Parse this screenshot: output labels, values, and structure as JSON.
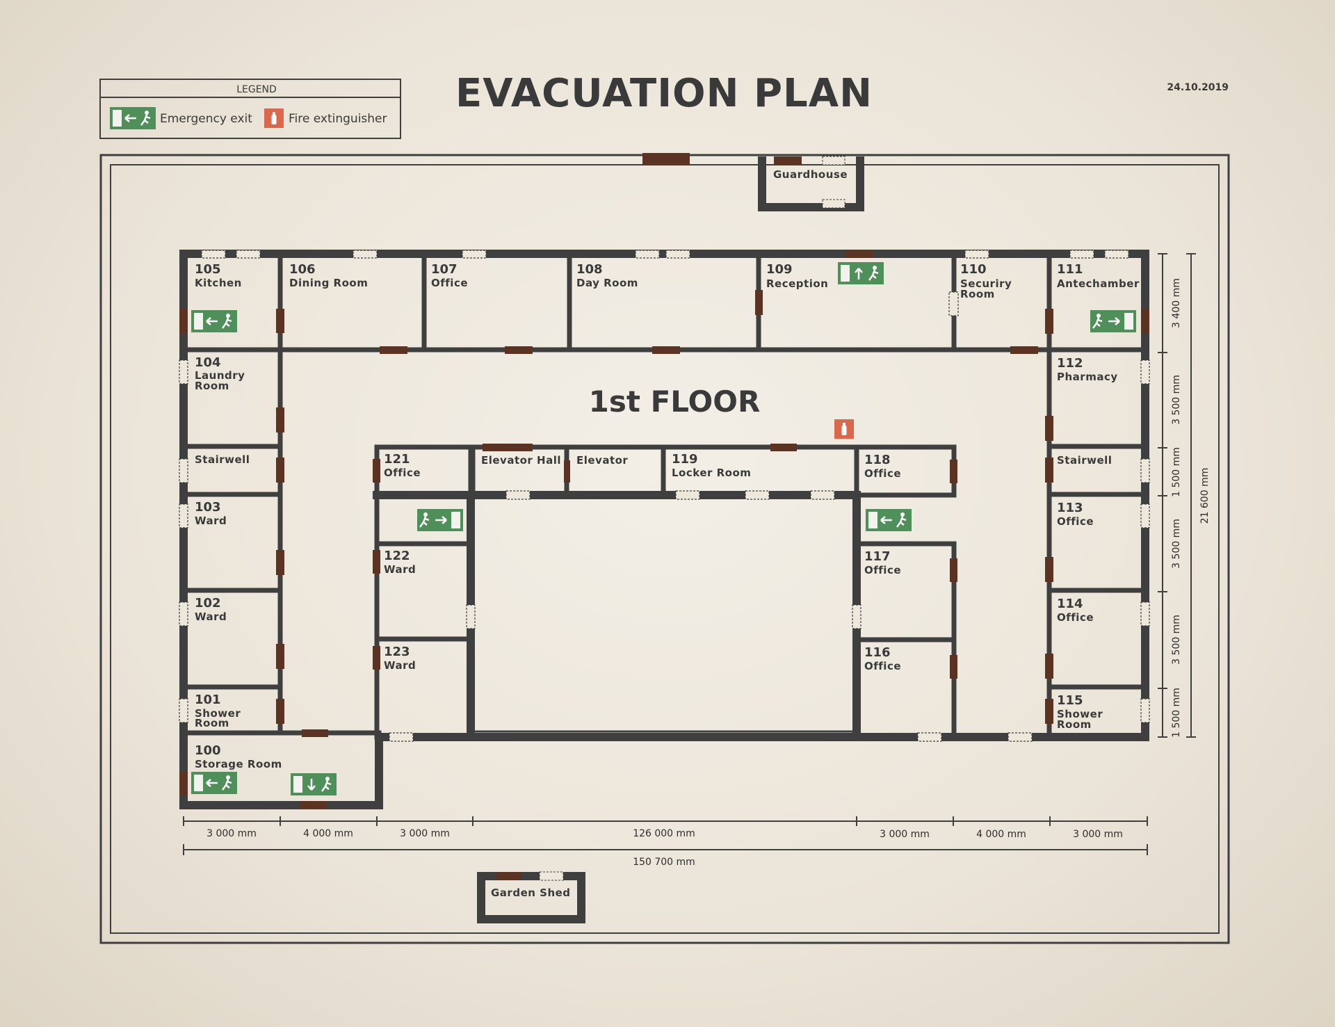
{
  "title": "EVACUATION PLAN",
  "date": "24.10.2019",
  "floor_label": "1st FLOOR",
  "legend": {
    "heading": "LEGEND",
    "items": [
      {
        "icon": "emergency-exit-icon",
        "label": "Emergency exit"
      },
      {
        "icon": "fire-extinguisher-icon",
        "label": "Fire extinguisher"
      }
    ]
  },
  "colors": {
    "wall": "#3f3f3f",
    "door": "#5a3322",
    "exit_sign": "#4f8f5a",
    "extinguisher": "#d9684d",
    "paper": "#ede7dc"
  },
  "outbuildings": {
    "guardhouse": "Guardhouse",
    "garden_shed": "Garden Shed"
  },
  "rooms": {
    "r105": {
      "number": "105",
      "name": "Kitchen"
    },
    "r106": {
      "number": "106",
      "name": "Dining Room"
    },
    "r107": {
      "number": "107",
      "name": "Office"
    },
    "r108": {
      "number": "108",
      "name": "Day Room"
    },
    "r109": {
      "number": "109",
      "name": "Reception"
    },
    "r110": {
      "number": "110",
      "name1": "Securiry",
      "name2": "Room"
    },
    "r111": {
      "number": "111",
      "name": "Antechamber"
    },
    "r104": {
      "number": "104",
      "name1": "Laundry",
      "name2": "Room"
    },
    "stair_w": {
      "name": "Stairwell"
    },
    "r103": {
      "number": "103",
      "name": "Ward"
    },
    "r102": {
      "number": "102",
      "name": "Ward"
    },
    "r101": {
      "number": "101",
      "name1": "Shower",
      "name2": "Room"
    },
    "r100": {
      "number": "100",
      "name": "Storage Room"
    },
    "r112": {
      "number": "112",
      "name": "Pharmacy"
    },
    "stair_e": {
      "name": "Stairwell"
    },
    "r113": {
      "number": "113",
      "name": "Office"
    },
    "r114": {
      "number": "114",
      "name": "Office"
    },
    "r115": {
      "number": "115",
      "name1": "Shower",
      "name2": "Room"
    },
    "r121": {
      "number": "121",
      "name": "Office"
    },
    "elevator_hall": {
      "name": "Elevator Hall"
    },
    "elevator": {
      "name": "Elevator"
    },
    "r119": {
      "number": "119",
      "name": "Locker Room"
    },
    "r118": {
      "number": "118",
      "name": "Office"
    },
    "r122": {
      "number": "122",
      "name": "Ward"
    },
    "r123": {
      "number": "123",
      "name": "Ward"
    },
    "r117": {
      "number": "117",
      "name": "Office"
    },
    "r116": {
      "number": "116",
      "name": "Office"
    }
  },
  "dimensions": {
    "bottom": [
      "3 000 mm",
      "4 000 mm",
      "3 000 mm",
      "126 000 mm",
      "3 000 mm",
      "4 000 mm",
      "3 000 mm"
    ],
    "total_width": "150 700 mm",
    "right": [
      "3 400 mm",
      "3 500 mm",
      "1 500 mm",
      "3 500 mm",
      "3 500 mm",
      "1 500 mm"
    ],
    "total_height": "21 600 mm"
  }
}
